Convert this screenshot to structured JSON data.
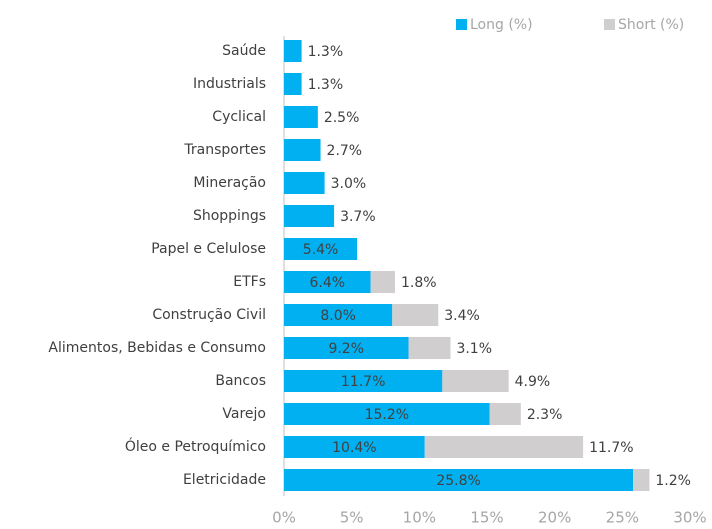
{
  "chart_data": {
    "type": "bar",
    "orientation": "horizontal",
    "stacked": true,
    "categories": [
      "Saúde",
      "Industrials",
      "Cyclical",
      "Transportes",
      "Mineração",
      "Shoppings",
      "Papel e Celulose",
      "ETFs",
      "Construção Civil",
      "Alimentos, Bebidas e Consumo",
      "Bancos",
      "Varejo",
      "Óleo e Petroquímico",
      "Eletricidade"
    ],
    "series": [
      {
        "name": "Long (%)",
        "color": "#00b0f0",
        "values": [
          1.3,
          1.3,
          2.5,
          2.7,
          3.0,
          3.7,
          5.4,
          6.4,
          8.0,
          9.2,
          11.7,
          15.2,
          10.4,
          25.8
        ],
        "value_labels": [
          "1.3%",
          "1.3%",
          "2.5%",
          "2.7%",
          "3.0%",
          "3.7%",
          "5.4%",
          "6.4%",
          "8.0%",
          "9.2%",
          "11.7%",
          "15.2%",
          "10.4%",
          "25.8%"
        ]
      },
      {
        "name": "Short (%)",
        "color": "#d0cece",
        "values": [
          null,
          null,
          null,
          null,
          null,
          null,
          null,
          1.8,
          3.4,
          3.1,
          4.9,
          2.3,
          11.7,
          1.2
        ],
        "value_labels": [
          null,
          null,
          null,
          null,
          null,
          null,
          null,
          "1.8%",
          "3.4%",
          "3.1%",
          "4.9%",
          "2.3%",
          "11.7%",
          "1.2%"
        ]
      }
    ],
    "xlim": [
      0,
      30
    ],
    "xticks": [
      {
        "value": 0,
        "label": "0%"
      },
      {
        "value": 5,
        "label": "5%"
      },
      {
        "value": 10,
        "label": "10%"
      },
      {
        "value": 15,
        "label": "15%"
      },
      {
        "value": 20,
        "label": "20%"
      },
      {
        "value": 25,
        "label": "25%"
      },
      {
        "value": 30,
        "label": "30%"
      }
    ],
    "legend": "top-right",
    "grid": false
  }
}
